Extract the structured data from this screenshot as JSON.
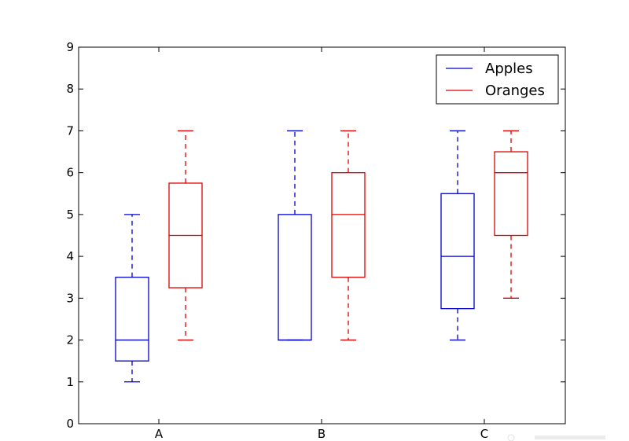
{
  "chart_data": {
    "type": "box",
    "title": "",
    "xlabel": "",
    "ylabel": "",
    "categories": [
      "A",
      "B",
      "C"
    ],
    "ylim": [
      0,
      9
    ],
    "yticks": [
      0,
      1,
      2,
      3,
      4,
      5,
      6,
      7,
      8,
      9
    ],
    "grid": false,
    "legend_position": "top-right",
    "series": [
      {
        "name": "Apples",
        "color": "#0000cc",
        "boxes": [
          {
            "category": "A",
            "whisker_low": 1,
            "q1": 1.5,
            "median": 2,
            "q3": 3.5,
            "whisker_high": 5
          },
          {
            "category": "B",
            "whisker_low": 2,
            "q1": 2,
            "median": 2,
            "q3": 5,
            "whisker_high": 7
          },
          {
            "category": "C",
            "whisker_low": 2,
            "q1": 2.75,
            "median": 4,
            "q3": 5.5,
            "whisker_high": 7
          }
        ]
      },
      {
        "name": "Oranges",
        "color": "#dd0000",
        "boxes": [
          {
            "category": "A",
            "whisker_low": 2,
            "q1": 3.25,
            "median": 4.5,
            "q3": 5.75,
            "whisker_high": 7
          },
          {
            "category": "B",
            "whisker_low": 2,
            "q1": 3.5,
            "median": 5,
            "q3": 6,
            "whisker_high": 7
          },
          {
            "category": "C",
            "whisker_low": 3,
            "q1": 4.5,
            "median": 6,
            "q3": 6.5,
            "whisker_high": 7
          }
        ]
      }
    ]
  }
}
